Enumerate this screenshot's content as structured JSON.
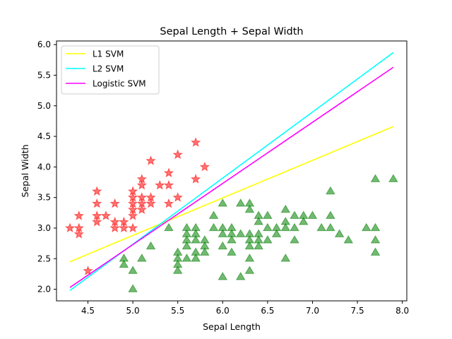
{
  "chart_data": {
    "type": "scatter",
    "title": "Sepal Length + Sepal Width",
    "xlabel": "Sepal Length",
    "ylabel": "Sepal Width",
    "xlim": [
      4.15,
      8.05
    ],
    "ylim": [
      1.81,
      6.06
    ],
    "x_ticks": [
      4.5,
      5.0,
      5.5,
      6.0,
      6.5,
      7.0,
      7.5,
      8.0
    ],
    "x_tick_labels": [
      "4.5",
      "5.0",
      "5.5",
      "6.0",
      "6.5",
      "7.0",
      "7.5",
      "8.0"
    ],
    "y_ticks": [
      2.0,
      2.5,
      3.0,
      3.5,
      4.0,
      4.5,
      5.0,
      5.5,
      6.0
    ],
    "y_tick_labels": [
      "2.0",
      "2.5",
      "3.0",
      "3.5",
      "4.0",
      "4.5",
      "5.0",
      "5.5",
      "6.0"
    ],
    "grid": false,
    "legend_position": "top-left",
    "lines": [
      {
        "name": "L1 SVM",
        "color": "#ffff00",
        "x": [
          4.3,
          7.9
        ],
        "y": [
          2.45,
          4.66
        ]
      },
      {
        "name": "L2 SVM",
        "color": "#00ffff",
        "x": [
          4.3,
          7.9
        ],
        "y": [
          1.98,
          5.87
        ]
      },
      {
        "name": "Logistic SVM",
        "color": "#ff00ff",
        "x": [
          4.3,
          7.9
        ],
        "y": [
          2.03,
          5.63
        ]
      }
    ],
    "scatter_series": [
      {
        "marker": "star",
        "color": "#ff0000",
        "points": [
          [
            4.3,
            3.0
          ],
          [
            4.4,
            2.9
          ],
          [
            4.4,
            3.0
          ],
          [
            4.4,
            3.2
          ],
          [
            4.5,
            2.3
          ],
          [
            4.6,
            3.1
          ],
          [
            4.6,
            3.2
          ],
          [
            4.6,
            3.4
          ],
          [
            4.6,
            3.6
          ],
          [
            4.7,
            3.2
          ],
          [
            4.8,
            3.0
          ],
          [
            4.8,
            3.1
          ],
          [
            4.8,
            3.4
          ],
          [
            4.9,
            3.0
          ],
          [
            4.9,
            3.1
          ],
          [
            5.0,
            3.0
          ],
          [
            5.0,
            3.2
          ],
          [
            5.0,
            3.3
          ],
          [
            5.0,
            3.4
          ],
          [
            5.0,
            3.5
          ],
          [
            5.0,
            3.6
          ],
          [
            5.1,
            3.3
          ],
          [
            5.1,
            3.4
          ],
          [
            5.1,
            3.5
          ],
          [
            5.1,
            3.7
          ],
          [
            5.1,
            3.8
          ],
          [
            5.2,
            3.4
          ],
          [
            5.2,
            3.5
          ],
          [
            5.2,
            4.1
          ],
          [
            5.3,
            3.7
          ],
          [
            5.4,
            3.4
          ],
          [
            5.4,
            3.7
          ],
          [
            5.4,
            3.9
          ],
          [
            5.5,
            3.5
          ],
          [
            5.5,
            4.2
          ],
          [
            5.7,
            3.8
          ],
          [
            5.7,
            4.4
          ],
          [
            5.8,
            4.0
          ]
        ]
      },
      {
        "marker": "triangle",
        "color": "#008000",
        "points": [
          [
            4.9,
            2.4
          ],
          [
            4.9,
            2.5
          ],
          [
            5.0,
            2.0
          ],
          [
            5.0,
            2.3
          ],
          [
            5.1,
            2.5
          ],
          [
            5.2,
            2.7
          ],
          [
            5.4,
            3.0
          ],
          [
            5.5,
            2.3
          ],
          [
            5.5,
            2.4
          ],
          [
            5.5,
            2.5
          ],
          [
            5.5,
            2.6
          ],
          [
            5.6,
            2.5
          ],
          [
            5.6,
            2.7
          ],
          [
            5.6,
            2.8
          ],
          [
            5.6,
            2.9
          ],
          [
            5.6,
            3.0
          ],
          [
            5.7,
            2.5
          ],
          [
            5.7,
            2.6
          ],
          [
            5.7,
            2.8
          ],
          [
            5.7,
            2.9
          ],
          [
            5.7,
            3.0
          ],
          [
            5.8,
            2.6
          ],
          [
            5.8,
            2.7
          ],
          [
            5.8,
            2.8
          ],
          [
            5.9,
            3.0
          ],
          [
            5.9,
            3.2
          ],
          [
            6.0,
            2.2
          ],
          [
            6.0,
            2.7
          ],
          [
            6.0,
            2.9
          ],
          [
            6.0,
            3.0
          ],
          [
            6.0,
            3.4
          ],
          [
            6.1,
            2.6
          ],
          [
            6.1,
            2.8
          ],
          [
            6.1,
            2.9
          ],
          [
            6.1,
            3.0
          ],
          [
            6.2,
            2.2
          ],
          [
            6.2,
            2.9
          ],
          [
            6.2,
            3.4
          ],
          [
            6.3,
            2.3
          ],
          [
            6.3,
            2.5
          ],
          [
            6.3,
            2.7
          ],
          [
            6.3,
            2.8
          ],
          [
            6.3,
            2.9
          ],
          [
            6.3,
            3.3
          ],
          [
            6.3,
            3.4
          ],
          [
            6.4,
            2.7
          ],
          [
            6.4,
            2.8
          ],
          [
            6.4,
            2.9
          ],
          [
            6.4,
            3.1
          ],
          [
            6.4,
            3.2
          ],
          [
            6.5,
            2.8
          ],
          [
            6.5,
            3.0
          ],
          [
            6.5,
            3.2
          ],
          [
            6.6,
            2.9
          ],
          [
            6.6,
            3.0
          ],
          [
            6.7,
            2.5
          ],
          [
            6.7,
            3.0
          ],
          [
            6.7,
            3.1
          ],
          [
            6.7,
            3.3
          ],
          [
            6.8,
            2.8
          ],
          [
            6.8,
            3.0
          ],
          [
            6.8,
            3.2
          ],
          [
            6.9,
            3.1
          ],
          [
            6.9,
            3.2
          ],
          [
            7.0,
            3.2
          ],
          [
            7.1,
            3.0
          ],
          [
            7.2,
            3.0
          ],
          [
            7.2,
            3.2
          ],
          [
            7.2,
            3.6
          ],
          [
            7.3,
            2.9
          ],
          [
            7.4,
            2.8
          ],
          [
            7.6,
            3.0
          ],
          [
            7.7,
            2.6
          ],
          [
            7.7,
            2.8
          ],
          [
            7.7,
            3.0
          ],
          [
            7.7,
            3.8
          ],
          [
            7.9,
            3.8
          ]
        ]
      }
    ]
  }
}
